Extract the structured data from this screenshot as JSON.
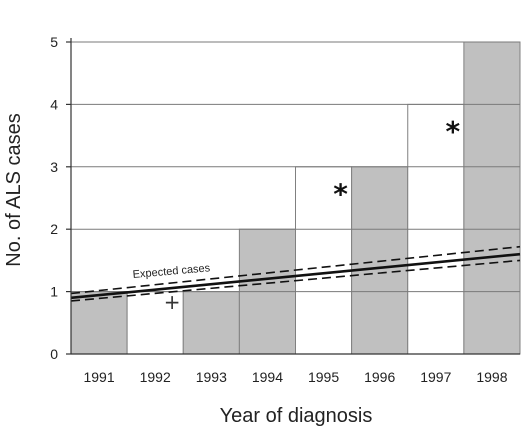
{
  "chart_data": {
    "type": "bar",
    "xlabel": "Year of diagnosis",
    "ylabel": "No. of ALS cases",
    "categories": [
      "1991",
      "1992",
      "1993",
      "1994",
      "1995",
      "1996",
      "1997",
      "1998"
    ],
    "values": [
      1,
      1,
      1,
      2,
      3,
      3,
      4,
      5
    ],
    "highlighted_unfilled": [
      "1992",
      "1995",
      "1997"
    ],
    "ylim": [
      0,
      5
    ],
    "yticks": [
      0,
      1,
      2,
      3,
      4,
      5
    ],
    "grid": true,
    "bar_colors": {
      "filled": "#c0c0c0",
      "unfilled": "#ffffff",
      "edge": "#808080"
    },
    "expected_line": {
      "label": "Expected cases",
      "x_start": 1991,
      "x_end": 1998,
      "center": [
        0.9,
        1.6
      ],
      "lower": [
        0.85,
        1.5
      ],
      "upper": [
        0.97,
        1.72
      ]
    },
    "markers": [
      {
        "category": "1992",
        "symbol": "+",
        "y": 0.85
      },
      {
        "category": "1995",
        "symbol": "*",
        "y": 2.7
      },
      {
        "category": "1997",
        "symbol": "*",
        "y": 3.7
      }
    ]
  }
}
